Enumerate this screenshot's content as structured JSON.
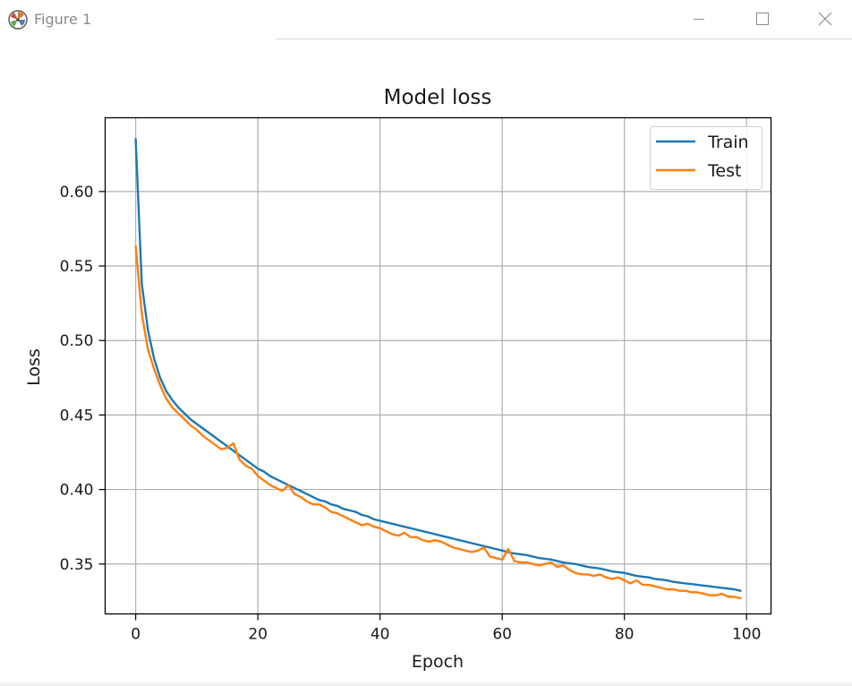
{
  "window": {
    "title": "Figure 1",
    "icons": {
      "app": "matplotlib-icon",
      "minimize": "minimize-icon",
      "maximize": "maximize-icon",
      "close": "close-icon"
    }
  },
  "chart_data": {
    "type": "line",
    "title": "Model loss",
    "xlabel": "Epoch",
    "ylabel": "Loss",
    "xlim": [
      -5,
      104
    ],
    "ylim": [
      0.3165,
      0.6495
    ],
    "xticks": [
      0,
      20,
      40,
      60,
      80,
      100
    ],
    "xtick_labels": [
      "0",
      "20",
      "40",
      "60",
      "80",
      "100"
    ],
    "yticks": [
      0.35,
      0.4,
      0.45,
      0.5,
      0.55,
      0.6
    ],
    "ytick_labels": [
      "0.35",
      "0.40",
      "0.45",
      "0.50",
      "0.55",
      "0.60"
    ],
    "grid": true,
    "legend_position": "upper right",
    "x": [
      0,
      1,
      2,
      3,
      4,
      5,
      6,
      7,
      8,
      9,
      10,
      11,
      12,
      13,
      14,
      15,
      16,
      17,
      18,
      19,
      20,
      21,
      22,
      23,
      24,
      25,
      26,
      27,
      28,
      29,
      30,
      31,
      32,
      33,
      34,
      35,
      36,
      37,
      38,
      39,
      40,
      41,
      42,
      43,
      44,
      45,
      46,
      47,
      48,
      49,
      50,
      51,
      52,
      53,
      54,
      55,
      56,
      57,
      58,
      59,
      60,
      61,
      62,
      63,
      64,
      65,
      66,
      67,
      68,
      69,
      70,
      71,
      72,
      73,
      74,
      75,
      76,
      77,
      78,
      79,
      80,
      81,
      82,
      83,
      84,
      85,
      86,
      87,
      88,
      89,
      90,
      91,
      92,
      93,
      94,
      95,
      96,
      97,
      98,
      99
    ],
    "series": [
      {
        "name": "Train",
        "color": "#1f77b4",
        "values": [
          0.635,
          0.538,
          0.507,
          0.488,
          0.475,
          0.466,
          0.46,
          0.455,
          0.451,
          0.447,
          0.444,
          0.441,
          0.438,
          0.435,
          0.432,
          0.429,
          0.426,
          0.423,
          0.42,
          0.417,
          0.414,
          0.412,
          0.409,
          0.407,
          0.405,
          0.403,
          0.401,
          0.399,
          0.397,
          0.395,
          0.393,
          0.392,
          0.39,
          0.389,
          0.387,
          0.386,
          0.385,
          0.383,
          0.382,
          0.38,
          0.379,
          0.378,
          0.377,
          0.376,
          0.375,
          0.374,
          0.373,
          0.372,
          0.371,
          0.37,
          0.369,
          0.368,
          0.367,
          0.366,
          0.365,
          0.364,
          0.363,
          0.362,
          0.361,
          0.36,
          0.359,
          0.358,
          0.357,
          0.3565,
          0.356,
          0.355,
          0.354,
          0.3535,
          0.353,
          0.352,
          0.351,
          0.3505,
          0.35,
          0.349,
          0.348,
          0.3475,
          0.347,
          0.346,
          0.345,
          0.3445,
          0.344,
          0.343,
          0.342,
          0.3415,
          0.341,
          0.34,
          0.3395,
          0.339,
          0.338,
          0.3375,
          0.337,
          0.3365,
          0.336,
          0.3355,
          0.335,
          0.3345,
          0.334,
          0.3335,
          0.333,
          0.332
        ]
      },
      {
        "name": "Test",
        "color": "#ff7f0e",
        "values": [
          0.563,
          0.518,
          0.494,
          0.481,
          0.47,
          0.461,
          0.455,
          0.451,
          0.447,
          0.443,
          0.44,
          0.436,
          0.433,
          0.43,
          0.427,
          0.428,
          0.431,
          0.42,
          0.416,
          0.414,
          0.409,
          0.406,
          0.403,
          0.401,
          0.399,
          0.403,
          0.397,
          0.395,
          0.392,
          0.39,
          0.39,
          0.388,
          0.385,
          0.384,
          0.382,
          0.38,
          0.378,
          0.376,
          0.377,
          0.375,
          0.374,
          0.372,
          0.37,
          0.369,
          0.371,
          0.368,
          0.368,
          0.366,
          0.365,
          0.366,
          0.365,
          0.363,
          0.361,
          0.36,
          0.359,
          0.358,
          0.359,
          0.361,
          0.355,
          0.354,
          0.353,
          0.36,
          0.352,
          0.351,
          0.351,
          0.35,
          0.349,
          0.35,
          0.351,
          0.348,
          0.349,
          0.346,
          0.344,
          0.343,
          0.343,
          0.342,
          0.343,
          0.341,
          0.34,
          0.341,
          0.339,
          0.337,
          0.339,
          0.336,
          0.336,
          0.335,
          0.334,
          0.333,
          0.333,
          0.332,
          0.332,
          0.331,
          0.331,
          0.33,
          0.329,
          0.329,
          0.33,
          0.328,
          0.328,
          0.327
        ]
      }
    ]
  }
}
